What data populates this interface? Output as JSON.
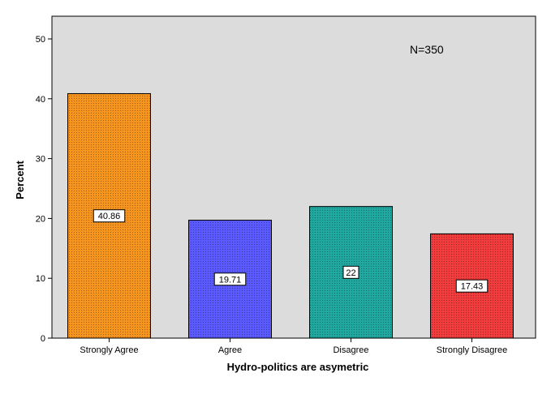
{
  "chart_data": {
    "type": "bar",
    "categories": [
      "Strongly Agree",
      "Agree",
      "Disagree",
      "Strongly Disagree"
    ],
    "values": [
      40.86,
      19.71,
      22,
      17.43
    ],
    "data_labels": [
      "40.86",
      "19.71",
      "22",
      "17.43"
    ],
    "xlabel": "Hydro-politics are asymetric",
    "ylabel": "Percent",
    "ylim": [
      0,
      50
    ],
    "yticks": [
      0,
      10,
      20,
      30,
      40,
      50
    ],
    "annotation": "N=350",
    "grid": false,
    "colors": [
      "#f5941f",
      "#5a5aff",
      "#20a8a0",
      "#f03c3c"
    ],
    "plot_background": "#dcdcdc",
    "pattern": "dotted"
  }
}
